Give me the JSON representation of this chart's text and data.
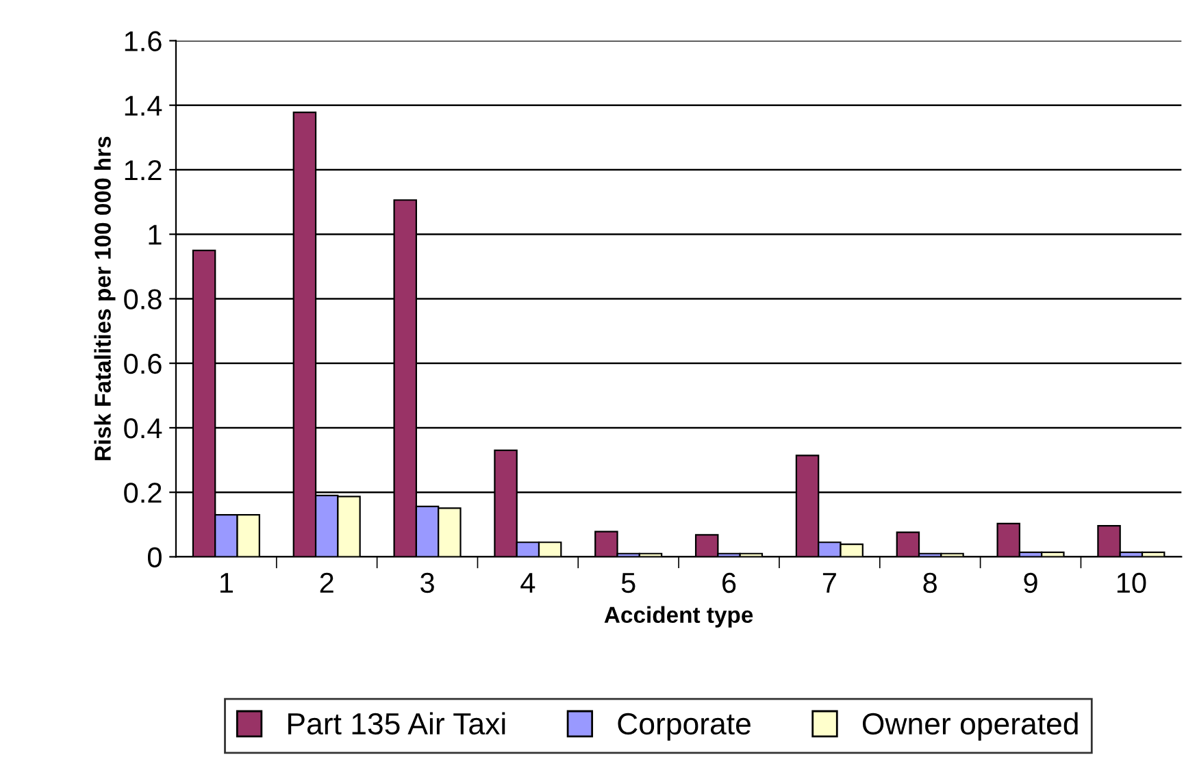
{
  "chart_data": {
    "type": "bar",
    "xlabel": "Accident type",
    "ylabel": "Risk Fatalities per 100 000 hrs",
    "categories": [
      "1",
      "2",
      "3",
      "4",
      "5",
      "6",
      "7",
      "8",
      "9",
      "10"
    ],
    "series": [
      {
        "name": "Part 135 Air Taxi",
        "color": "#993366",
        "values": [
          0.95,
          1.378,
          1.106,
          0.33,
          0.078,
          0.068,
          0.314,
          0.076,
          0.103,
          0.096
        ]
      },
      {
        "name": "Corporate",
        "color": "#9999ff",
        "values": [
          0.13,
          0.19,
          0.156,
          0.045,
          0.01,
          0.01,
          0.045,
          0.01,
          0.014,
          0.014
        ]
      },
      {
        "name": "Owner operated",
        "color": "#ffffcc",
        "values": [
          0.13,
          0.187,
          0.151,
          0.045,
          0.01,
          0.01,
          0.039,
          0.01,
          0.014,
          0.014
        ]
      }
    ],
    "ylim": [
      0,
      1.6
    ],
    "yticks": [
      0,
      0.2,
      0.4,
      0.6,
      0.8,
      1,
      1.2,
      1.4,
      1.6
    ],
    "grid": "y",
    "legend": "bottom"
  }
}
